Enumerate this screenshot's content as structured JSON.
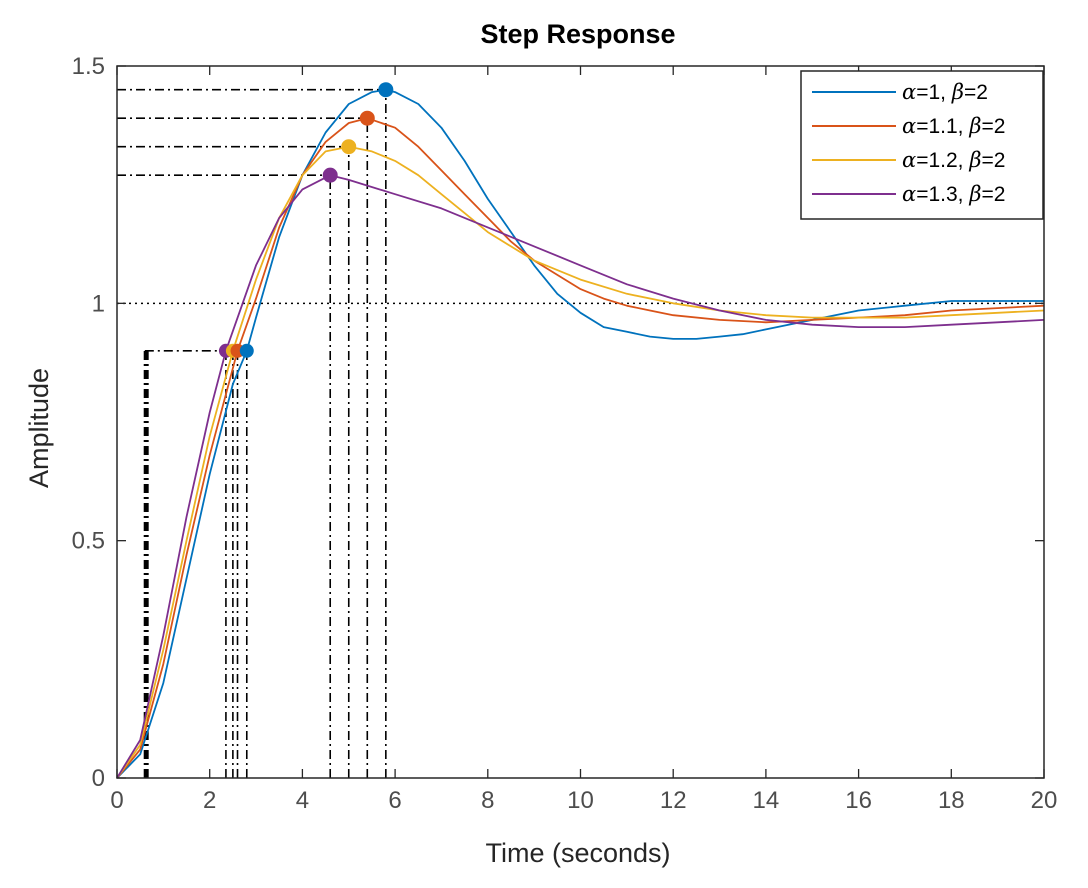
{
  "chart_data": {
    "type": "line",
    "title": "Step Response",
    "xlabel": "Time (seconds)",
    "ylabel": "Amplitude",
    "xlim": [
      0,
      20
    ],
    "ylim": [
      0,
      1.5
    ],
    "xticks": [
      0,
      2,
      4,
      6,
      8,
      10,
      12,
      14,
      16,
      18,
      20
    ],
    "xtick_labels": [
      "0",
      "2",
      "4",
      "6",
      "8",
      "10",
      "12",
      "14",
      "16",
      "18",
      "20"
    ],
    "yticks": [
      0,
      0.5,
      1,
      1.5
    ],
    "ytick_labels": [
      "0",
      "0.5",
      "1",
      "1.5"
    ],
    "reference_line": {
      "y": 1,
      "style": "dotted"
    },
    "legend_position": "top-right",
    "series": [
      {
        "name": "α=1, β=2",
        "legend": {
          "alpha_sym": "α",
          "alpha_val": "=1, ",
          "beta_sym": "β",
          "beta_val": "=2"
        },
        "color": "#0072BD",
        "x": [
          0,
          0.5,
          1,
          1.5,
          2,
          2.5,
          2.8,
          3,
          3.5,
          4,
          4.5,
          5,
          5.5,
          5.8,
          6,
          6.5,
          7,
          7.5,
          8,
          8.5,
          9,
          9.5,
          10,
          10.5,
          11,
          11.5,
          12,
          12.5,
          13,
          13.5,
          14,
          15,
          16,
          17,
          18,
          19,
          20
        ],
        "y": [
          0,
          0.05,
          0.2,
          0.42,
          0.64,
          0.83,
          0.9,
          0.97,
          1.14,
          1.27,
          1.36,
          1.42,
          1.445,
          1.45,
          1.445,
          1.42,
          1.37,
          1.3,
          1.22,
          1.15,
          1.08,
          1.02,
          0.98,
          0.95,
          0.94,
          0.93,
          0.925,
          0.925,
          0.93,
          0.935,
          0.945,
          0.965,
          0.985,
          0.995,
          1.005,
          1.005,
          1.005
        ]
      },
      {
        "name": "α=1.1, β=2",
        "legend": {
          "alpha_sym": "α",
          "alpha_val": "=1.1, ",
          "beta_sym": "β",
          "beta_val": "=2"
        },
        "color": "#D95319",
        "x": [
          0,
          0.5,
          1,
          1.5,
          2,
          2.6,
          3,
          3.5,
          4,
          4.5,
          5,
          5.4,
          6,
          6.5,
          7,
          7.5,
          8,
          8.5,
          9,
          9.5,
          10,
          10.5,
          11,
          11.5,
          12,
          13,
          14,
          15,
          16,
          17,
          18,
          19,
          20
        ],
        "y": [
          0,
          0.06,
          0.24,
          0.47,
          0.68,
          0.9,
          1.01,
          1.16,
          1.27,
          1.34,
          1.38,
          1.39,
          1.37,
          1.33,
          1.28,
          1.23,
          1.18,
          1.13,
          1.09,
          1.06,
          1.03,
          1.01,
          0.995,
          0.985,
          0.975,
          0.965,
          0.96,
          0.965,
          0.97,
          0.975,
          0.985,
          0.99,
          0.995
        ]
      },
      {
        "name": "α=1.2, β=2",
        "legend": {
          "alpha_sym": "α",
          "alpha_val": "=1.2, ",
          "beta_sym": "β",
          "beta_val": "=2"
        },
        "color": "#EDB120",
        "x": [
          0,
          0.5,
          1,
          1.5,
          2,
          2.5,
          3,
          3.5,
          4,
          4.5,
          5,
          5.5,
          6,
          6.5,
          7,
          7.5,
          8,
          8.5,
          9,
          9.5,
          10,
          11,
          12,
          13,
          14,
          15,
          16,
          17,
          18,
          19,
          20
        ],
        "y": [
          0,
          0.07,
          0.27,
          0.5,
          0.72,
          0.9,
          1.05,
          1.18,
          1.27,
          1.32,
          1.33,
          1.32,
          1.3,
          1.27,
          1.23,
          1.19,
          1.15,
          1.12,
          1.09,
          1.07,
          1.05,
          1.02,
          1.0,
          0.985,
          0.975,
          0.97,
          0.97,
          0.97,
          0.975,
          0.98,
          0.985
        ]
      },
      {
        "name": "α=1.3, β=2",
        "legend": {
          "alpha_sym": "α",
          "alpha_val": "=1.3, ",
          "beta_sym": "β",
          "beta_val": "=2"
        },
        "color": "#7E2F8E",
        "x": [
          0,
          0.5,
          1,
          1.5,
          2,
          2.35,
          3,
          3.5,
          4,
          4.6,
          5,
          6,
          7,
          8,
          9,
          10,
          11,
          12,
          13,
          14,
          15,
          16,
          17,
          18,
          19,
          20
        ],
        "y": [
          0,
          0.08,
          0.3,
          0.55,
          0.77,
          0.9,
          1.08,
          1.18,
          1.24,
          1.27,
          1.26,
          1.23,
          1.2,
          1.16,
          1.12,
          1.08,
          1.04,
          1.01,
          0.985,
          0.965,
          0.955,
          0.95,
          0.95,
          0.955,
          0.96,
          0.965
        ]
      }
    ],
    "rise_time_markers": [
      {
        "series": 3,
        "x": 2.35,
        "y": 0.9
      },
      {
        "series": 2,
        "x": 2.5,
        "y": 0.9
      },
      {
        "series": 1,
        "x": 2.6,
        "y": 0.9
      },
      {
        "series": 0,
        "x": 2.8,
        "y": 0.9
      }
    ],
    "rise_time_start_x": [
      0.6,
      0.62,
      0.64,
      0.66
    ],
    "peak_markers": [
      {
        "series": 0,
        "x": 5.8,
        "y": 1.45
      },
      {
        "series": 1,
        "x": 5.4,
        "y": 1.39
      },
      {
        "series": 2,
        "x": 5.0,
        "y": 1.33
      },
      {
        "series": 3,
        "x": 4.6,
        "y": 1.27
      }
    ]
  }
}
